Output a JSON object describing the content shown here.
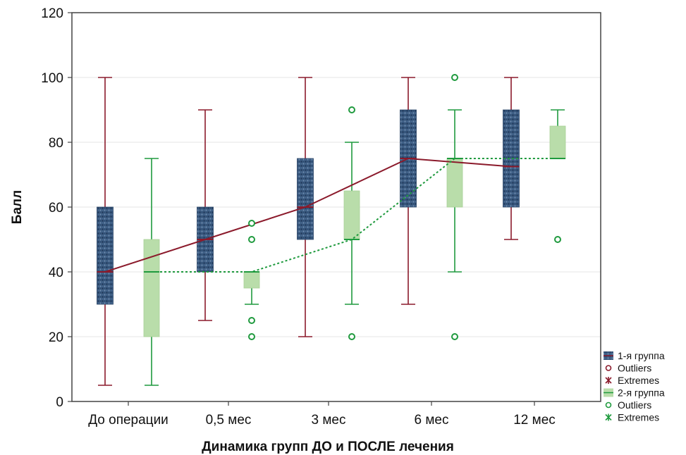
{
  "chart_data": {
    "type": "boxplot",
    "xlabel": "Динамика групп ДО и ПОСЛЕ лечения",
    "ylabel": "Балл",
    "ylim": [
      0,
      120
    ],
    "yticks": [
      0,
      20,
      40,
      60,
      80,
      100,
      120
    ],
    "categories": [
      "До операции",
      "0,5 мес",
      "3 мес",
      "6 мес",
      "12 мес"
    ],
    "grid": true,
    "legend_position": "right",
    "series": [
      {
        "name": "1-я группа",
        "color": "#8b1a2b",
        "box_color": "#2f4f73",
        "median_line_style": "solid",
        "boxes": [
          {
            "whisker_low": 5,
            "q1": 30,
            "median": 40,
            "q3": 60,
            "whisker_high": 100
          },
          {
            "whisker_low": 25,
            "q1": 40,
            "median": 50,
            "q3": 60,
            "whisker_high": 90
          },
          {
            "whisker_low": 20,
            "q1": 50,
            "median": 60,
            "q3": 75,
            "whisker_high": 100
          },
          {
            "whisker_low": 30,
            "q1": 60,
            "median": 75,
            "q3": 90,
            "whisker_high": 100
          },
          {
            "whisker_low": 50,
            "q1": 60,
            "median": 72.5,
            "q3": 90,
            "whisker_high": 100
          }
        ],
        "outliers": []
      },
      {
        "name": "2-я группа",
        "color": "#1f9a3e",
        "box_color": "#b9ddaa",
        "median_line_style": "dotted",
        "boxes": [
          {
            "whisker_low": 5,
            "q1": 20,
            "median": 40,
            "q3": 50,
            "whisker_high": 75
          },
          {
            "whisker_low": 30,
            "q1": 35,
            "median": 40,
            "q3": 40,
            "whisker_high": 40
          },
          {
            "whisker_low": 30,
            "q1": 50,
            "median": 50,
            "q3": 65,
            "whisker_high": 80
          },
          {
            "whisker_low": 40,
            "q1": 60,
            "median": 75,
            "q3": 75,
            "whisker_high": 90
          },
          {
            "whisker_low": 75,
            "q1": 75,
            "median": 75,
            "q3": 85,
            "whisker_high": 90
          }
        ],
        "outliers": [
          {
            "category": "0,5 мес",
            "values": [
              55,
              50,
              25,
              20
            ]
          },
          {
            "category": "3 мес",
            "values": [
              90,
              20
            ]
          },
          {
            "category": "6 мес",
            "values": [
              100,
              20
            ]
          },
          {
            "category": "12 мес",
            "values": [
              50
            ]
          }
        ]
      }
    ],
    "legend": [
      {
        "label": "1-я группа",
        "marker": "box-dark"
      },
      {
        "label": "Outliers",
        "marker": "circle-red"
      },
      {
        "label": "Extremes",
        "marker": "star-red"
      },
      {
        "label": "2-я группа",
        "marker": "box-light"
      },
      {
        "label": "Outliers",
        "marker": "circle-green"
      },
      {
        "label": "Extremes",
        "marker": "star-green"
      }
    ]
  }
}
